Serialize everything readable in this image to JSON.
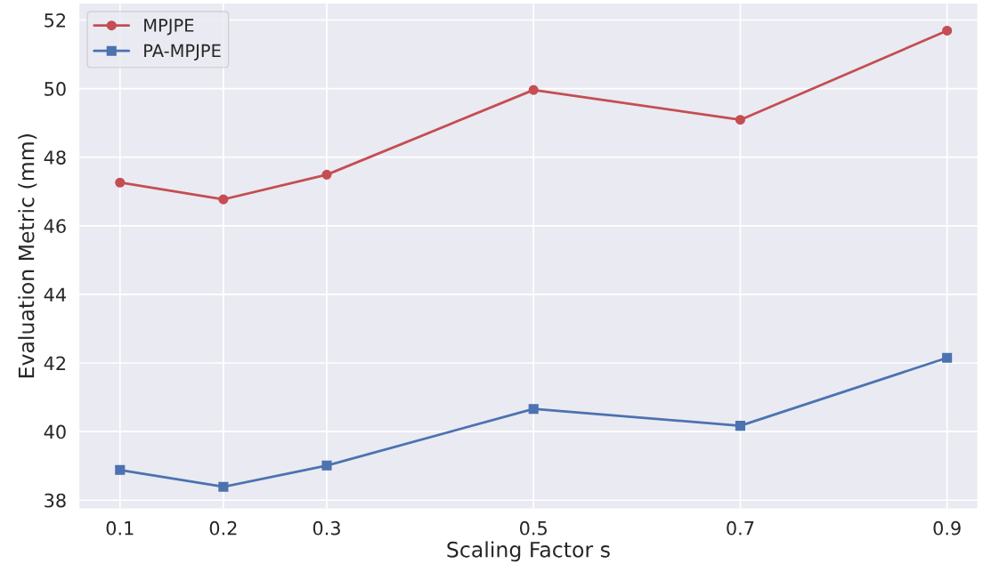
{
  "chart_data": {
    "type": "line",
    "xlabel": "Scaling Factor s",
    "ylabel": "Evaluation Metric (mm)",
    "x": [
      0.1,
      0.2,
      0.3,
      0.5,
      0.7,
      0.9
    ],
    "series": [
      {
        "name": "MPJPE",
        "color": "#c44e52",
        "marker": "circle",
        "values": [
          47.26,
          46.77,
          47.49,
          49.96,
          49.09,
          51.69
        ]
      },
      {
        "name": "PA-MPJPE",
        "color": "#4c72b0",
        "marker": "square",
        "values": [
          38.88,
          38.39,
          39.01,
          40.66,
          40.17,
          42.15
        ]
      }
    ],
    "xlim": [
      0.06,
      0.93
    ],
    "xticks": [
      0.1,
      0.2,
      0.3,
      0.5,
      0.7,
      0.9
    ],
    "ylim": [
      37.74,
      52.5
    ],
    "yticks": [
      38,
      40,
      42,
      44,
      46,
      48,
      50,
      52
    ],
    "grid": true,
    "legend": "top left",
    "line_style": "solid"
  }
}
